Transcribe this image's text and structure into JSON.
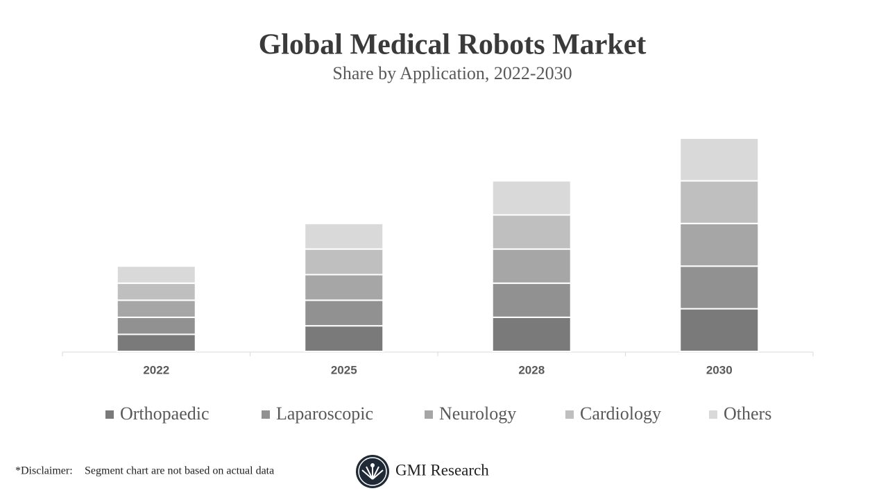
{
  "chart_data": {
    "type": "stacked-bar",
    "title": "Global Medical Robots Market",
    "subtitle": "Share by Application, 2022-2030",
    "categories": [
      "2022",
      "2025",
      "2028",
      "2030"
    ],
    "series": [
      {
        "name": "Orthopaedic",
        "color": "#7a7a7a",
        "values": [
          2,
          3,
          4,
          5
        ]
      },
      {
        "name": "Laparoscopic",
        "color": "#919191",
        "values": [
          2,
          3,
          4,
          5
        ]
      },
      {
        "name": "Neurology",
        "color": "#a6a6a6",
        "values": [
          2,
          3,
          4,
          5
        ]
      },
      {
        "name": "Cardiology",
        "color": "#bfbfbf",
        "values": [
          2,
          3,
          4,
          5
        ]
      },
      {
        "name": "Others",
        "color": "#d9d9d9",
        "values": [
          2,
          3,
          4,
          5
        ]
      }
    ],
    "ylim": [
      0,
      25
    ],
    "legend": "bottom"
  },
  "footer": {
    "disclaimer_label": "*Disclaimer:",
    "disclaimer": "Segment chart are not based on actual data",
    "brand": "GMI Research"
  }
}
